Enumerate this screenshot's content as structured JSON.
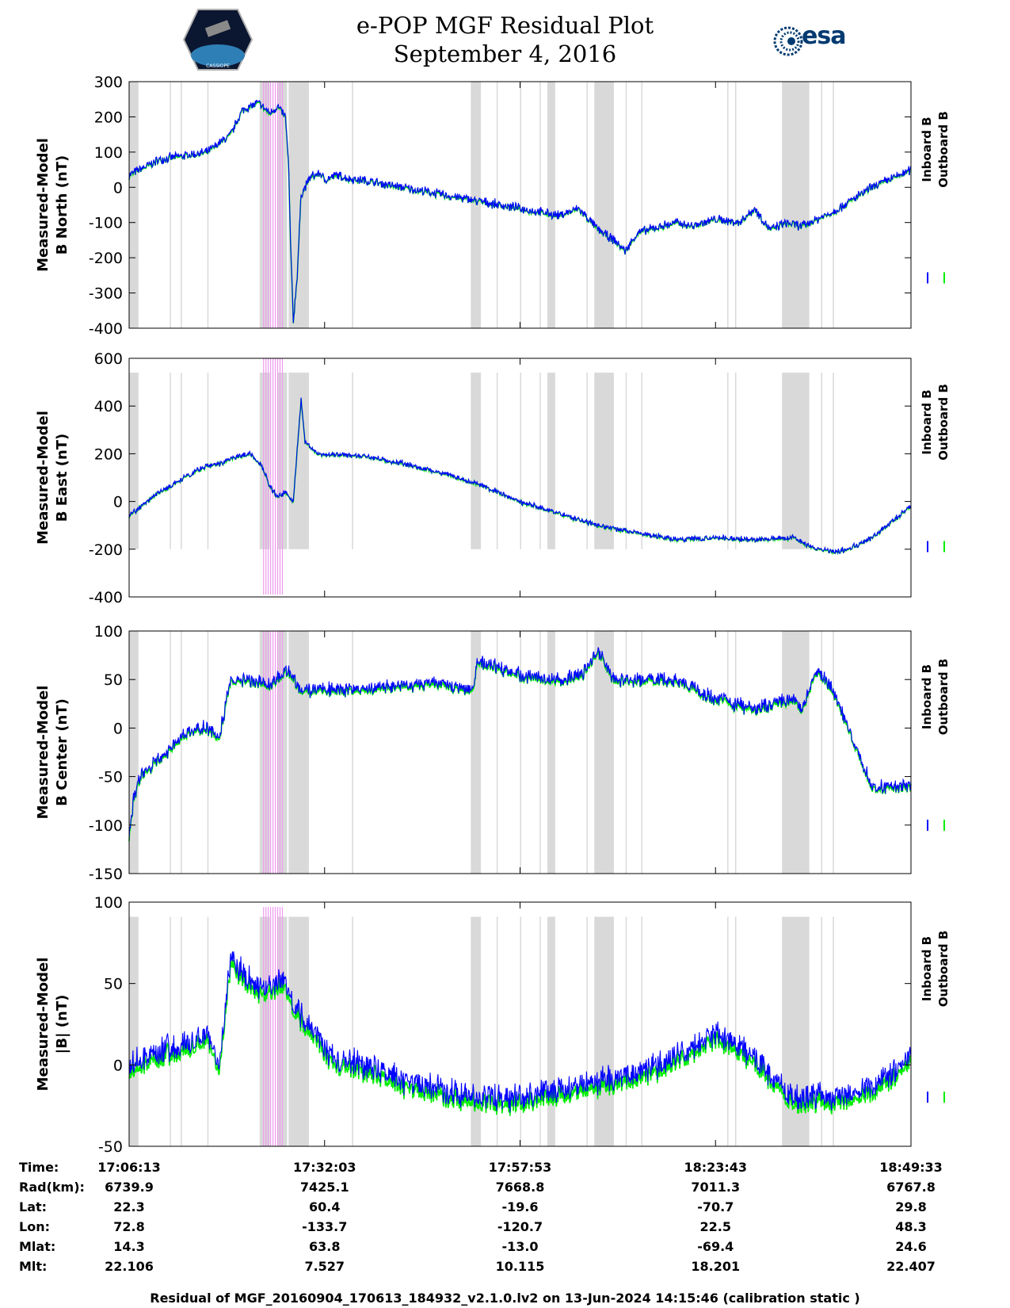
{
  "header": {
    "title_line1": "e-POP MGF Residual Plot",
    "title_line2": "September 4, 2016",
    "mission_logo_text": "CASSIOPE",
    "agency_logo_text": "esa"
  },
  "colors": {
    "inboard": "#0000ff",
    "outboard": "#00ee00",
    "gap": "#d9d9d9",
    "flag": "#ee99ee"
  },
  "chart_data": [
    {
      "type": "line",
      "id": "north",
      "ylabel_line1": "Measured-Model",
      "ylabel_line2": "B North (nT)",
      "ylim": [
        -400,
        300
      ],
      "yticks": [
        300,
        200,
        100,
        0,
        -100,
        -200,
        -300,
        -400
      ],
      "legend": [
        "Inboard B",
        "Outboard B"
      ],
      "series": [
        {
          "name": "Inboard B",
          "x": [
            0,
            0.04,
            0.1,
            0.13,
            0.145,
            0.165,
            0.18,
            0.19,
            0.2,
            0.204,
            0.207,
            0.21,
            0.215,
            0.22,
            0.232,
            0.245,
            0.25,
            0.265,
            0.28,
            0.3,
            0.35,
            0.4,
            0.45,
            0.5,
            0.55,
            0.575,
            0.6,
            0.62,
            0.635,
            0.65,
            0.68,
            0.7,
            0.72,
            0.75,
            0.78,
            0.8,
            0.82,
            0.84,
            0.86,
            0.9,
            0.95,
            1
          ],
          "y": [
            35,
            80,
            100,
            150,
            220,
            240,
            210,
            230,
            200,
            60,
            -200,
            -380,
            -250,
            -20,
            30,
            40,
            20,
            35,
            25,
            20,
            0,
            -20,
            -40,
            -60,
            -80,
            -60,
            -120,
            -150,
            -180,
            -130,
            -110,
            -100,
            -110,
            -90,
            -100,
            -60,
            -120,
            -100,
            -110,
            -70,
            0,
            50
          ],
          "noise": 16
        }
      ],
      "gaps": [
        [
          0,
          0.012
        ],
        [
          0.052
        ],
        [
          0.066
        ],
        [
          0.1
        ],
        [
          0.167,
          0.18
        ],
        [
          0.19,
          0.202
        ],
        [
          0.204,
          0.23
        ],
        [
          0.285
        ],
        [
          0.437,
          0.45
        ],
        [
          0.47
        ],
        [
          0.5
        ],
        [
          0.525
        ],
        [
          0.535,
          0.545
        ],
        [
          0.585
        ],
        [
          0.595,
          0.62
        ],
        [
          0.635
        ],
        [
          0.655
        ],
        [
          0.765
        ],
        [
          0.775
        ],
        [
          0.835,
          0.87
        ],
        [
          0.885
        ],
        [
          0.9
        ]
      ],
      "flags": [
        0.172,
        0.175,
        0.178,
        0.181,
        0.184,
        0.187,
        0.19,
        0.193,
        0.196
      ]
    },
    {
      "type": "line",
      "id": "east",
      "ylabel_line1": "Measured-Model",
      "ylabel_line2": "B East (nT)",
      "ylim": [
        -400,
        600
      ],
      "yticks": [
        600,
        400,
        200,
        0,
        -200,
        -400
      ],
      "legend": [
        "Inboard B",
        "Outboard B"
      ],
      "series": [
        {
          "name": "Inboard B",
          "x": [
            0,
            0.03,
            0.07,
            0.1,
            0.12,
            0.13,
            0.155,
            0.17,
            0.18,
            0.19,
            0.2,
            0.21,
            0.22,
            0.225,
            0.24,
            0.3,
            0.35,
            0.4,
            0.45,
            0.5,
            0.55,
            0.6,
            0.65,
            0.7,
            0.75,
            0.8,
            0.85,
            0.86,
            0.88,
            0.9,
            0.92,
            0.95,
            1
          ],
          "y": [
            -60,
            20,
            100,
            150,
            160,
            180,
            200,
            150,
            60,
            20,
            40,
            0,
            430,
            250,
            200,
            190,
            160,
            120,
            70,
            0,
            -50,
            -100,
            -130,
            -160,
            -150,
            -160,
            -150,
            -170,
            -200,
            -210,
            -200,
            -150,
            -20
          ],
          "noise": 14
        }
      ],
      "gaps": [
        [
          0,
          0.012
        ],
        [
          0.052
        ],
        [
          0.066
        ],
        [
          0.1
        ],
        [
          0.167,
          0.18
        ],
        [
          0.19,
          0.202
        ],
        [
          0.204,
          0.23
        ],
        [
          0.285
        ],
        [
          0.437,
          0.45
        ],
        [
          0.47
        ],
        [
          0.5
        ],
        [
          0.525
        ],
        [
          0.535,
          0.545
        ],
        [
          0.585
        ],
        [
          0.595,
          0.62
        ],
        [
          0.635
        ],
        [
          0.655
        ],
        [
          0.765
        ],
        [
          0.775
        ],
        [
          0.835,
          0.87
        ],
        [
          0.885
        ],
        [
          0.9
        ]
      ],
      "flags": [
        0.172,
        0.175,
        0.178,
        0.181,
        0.184,
        0.187,
        0.19,
        0.193,
        0.196
      ]
    },
    {
      "type": "line",
      "id": "center",
      "ylabel_line1": "Measured-Model",
      "ylabel_line2": "B Center (nT)",
      "ylim": [
        -150,
        100
      ],
      "yticks": [
        100,
        50,
        0,
        -50,
        -100,
        -150
      ],
      "legend": [
        "Inboard B",
        "Outboard B"
      ],
      "series": [
        {
          "name": "Inboard B",
          "x": [
            0,
            0.006,
            0.015,
            0.04,
            0.06,
            0.08,
            0.1,
            0.115,
            0.13,
            0.15,
            0.18,
            0.2,
            0.22,
            0.25,
            0.3,
            0.35,
            0.4,
            0.44,
            0.445,
            0.5,
            0.55,
            0.58,
            0.6,
            0.62,
            0.65,
            0.7,
            0.75,
            0.8,
            0.85,
            0.86,
            0.88,
            0.9,
            0.92,
            0.95,
            1
          ],
          "y": [
            -110,
            -70,
            -50,
            -30,
            -15,
            0,
            0,
            -10,
            50,
            50,
            45,
            60,
            40,
            40,
            40,
            45,
            45,
            40,
            70,
            55,
            50,
            55,
            80,
            50,
            50,
            50,
            30,
            20,
            30,
            20,
            60,
            40,
            0,
            -60,
            -60
          ],
          "noise": 9
        }
      ],
      "gaps": [
        [
          0,
          0.012
        ],
        [
          0.052
        ],
        [
          0.066
        ],
        [
          0.1
        ],
        [
          0.167,
          0.18
        ],
        [
          0.19,
          0.202
        ],
        [
          0.204,
          0.23
        ],
        [
          0.285
        ],
        [
          0.437,
          0.45
        ],
        [
          0.47
        ],
        [
          0.5
        ],
        [
          0.525
        ],
        [
          0.535,
          0.545
        ],
        [
          0.585
        ],
        [
          0.595,
          0.62
        ],
        [
          0.635
        ],
        [
          0.655
        ],
        [
          0.765
        ],
        [
          0.775
        ],
        [
          0.835,
          0.87
        ],
        [
          0.885
        ],
        [
          0.9
        ]
      ],
      "flags": [
        0.172,
        0.175,
        0.178,
        0.181,
        0.184,
        0.187,
        0.19,
        0.193,
        0.196
      ]
    },
    {
      "type": "line",
      "id": "total",
      "ylabel_line1": "Measured-Model",
      "ylabel_line2": "|B| (nT)",
      "ylim": [
        -50,
        100
      ],
      "yticks": [
        100,
        50,
        0,
        -50
      ],
      "legend": [
        "Inboard B",
        "Outboard B"
      ],
      "series": [
        {
          "name": "Inboard B",
          "x": [
            0,
            0.05,
            0.08,
            0.1,
            0.115,
            0.13,
            0.15,
            0.17,
            0.19,
            0.2,
            0.22,
            0.26,
            0.3,
            0.35,
            0.4,
            0.45,
            0.5,
            0.55,
            0.6,
            0.65,
            0.7,
            0.75,
            0.8,
            0.85,
            0.9,
            0.95,
            1
          ],
          "y": [
            0,
            10,
            15,
            20,
            0,
            65,
            55,
            45,
            50,
            50,
            30,
            5,
            0,
            -10,
            -15,
            -20,
            -20,
            -15,
            -10,
            -5,
            5,
            20,
            5,
            -20,
            -20,
            -15,
            5
          ],
          "noise": 10
        }
      ],
      "gaps": [
        [
          0,
          0.012
        ],
        [
          0.052
        ],
        [
          0.066
        ],
        [
          0.1
        ],
        [
          0.167,
          0.18
        ],
        [
          0.19,
          0.202
        ],
        [
          0.204,
          0.23
        ],
        [
          0.285
        ],
        [
          0.437,
          0.45
        ],
        [
          0.47
        ],
        [
          0.5
        ],
        [
          0.525
        ],
        [
          0.535,
          0.545
        ],
        [
          0.585
        ],
        [
          0.595,
          0.62
        ],
        [
          0.635
        ],
        [
          0.655
        ],
        [
          0.765
        ],
        [
          0.775
        ],
        [
          0.835,
          0.87
        ],
        [
          0.885
        ],
        [
          0.9
        ]
      ],
      "flags": [
        0.172,
        0.175,
        0.178,
        0.181,
        0.184,
        0.187,
        0.19,
        0.193,
        0.196
      ]
    }
  ],
  "ephemeris": {
    "rows": [
      {
        "label": "Time:",
        "values": [
          "17:06:13",
          "17:32:03",
          "17:57:53",
          "18:23:43",
          "18:49:33"
        ]
      },
      {
        "label": "Rad(km):",
        "values": [
          "6739.9",
          "7425.1",
          "7668.8",
          "7011.3",
          "6767.8"
        ]
      },
      {
        "label": "Lat:",
        "values": [
          "22.3",
          "60.4",
          "-19.6",
          "-70.7",
          "29.8"
        ]
      },
      {
        "label": "Lon:",
        "values": [
          "72.8",
          "-133.7",
          "-120.7",
          "22.5",
          "48.3"
        ]
      },
      {
        "label": "Mlat:",
        "values": [
          "14.3",
          "63.8",
          "-13.0",
          "-69.4",
          "24.6"
        ]
      },
      {
        "label": "Mlt:",
        "values": [
          "22.106",
          "7.527",
          "10.115",
          "18.201",
          "22.407"
        ]
      }
    ]
  },
  "footer": {
    "text": "Residual of MGF_20160904_170613_184932_v2.1.0.lv2 on 13-Jun-2024 14:15:46 (calibration static )"
  }
}
